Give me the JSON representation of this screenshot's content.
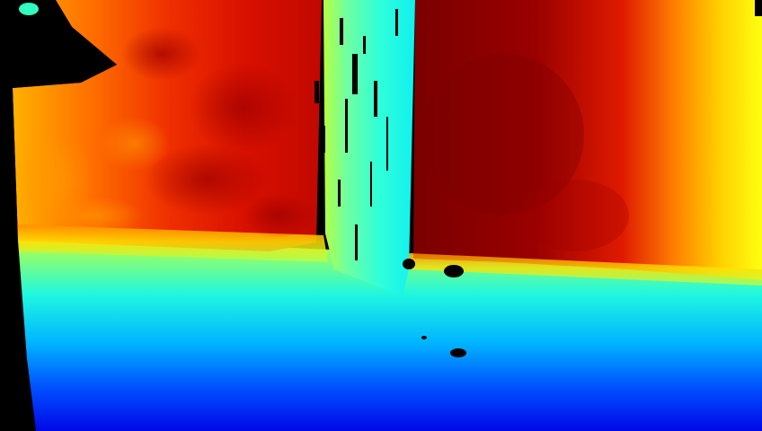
{
  "image": {
    "kind": "depth-map",
    "colormap": "jet",
    "colors": {
      "near": "#0000ff",
      "mid_near": "#00ffff",
      "mid": "#aaff55",
      "mid_far": "#ffff00",
      "far": "#ff2200",
      "farthest": "#880000",
      "invalid": "#000000"
    }
  }
}
